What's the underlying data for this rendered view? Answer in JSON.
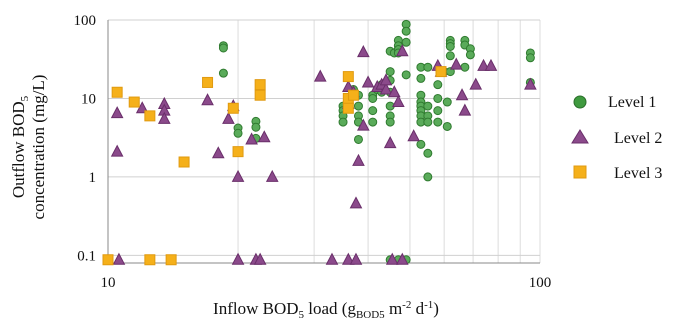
{
  "chart_data": {
    "type": "scatter",
    "xscale": "log",
    "yscale": "log",
    "xlim": [
      10,
      100
    ],
    "ylim": [
      0.08,
      100
    ],
    "grid": true,
    "legend_position": "right",
    "xlabel": {
      "main": "Inflow BOD",
      "sub1": "5",
      "mid": " load (g",
      "sub2": "BOD5",
      "end": " m",
      "sup1": "-2",
      "tail": " d",
      "sup2": "-1",
      "close": ")"
    },
    "ylabel": {
      "line1": "Outflow BOD",
      "line1_sub": "5",
      "line2": "concentration  (mg/L)"
    },
    "x_ticks": [
      {
        "value": 10,
        "label": "10"
      },
      {
        "value": 100,
        "label": "100"
      }
    ],
    "y_ticks": [
      {
        "value": 0.1,
        "label": "0.1"
      },
      {
        "value": 1,
        "label": "1"
      },
      {
        "value": 10,
        "label": "10"
      },
      {
        "value": 100,
        "label": "100"
      }
    ],
    "series": [
      {
        "name": "Level 1",
        "marker": "circle",
        "color": "#5aab5a",
        "edge": "#2f7a2f",
        "points": [
          [
            18.5,
            47
          ],
          [
            18.5,
            44
          ],
          [
            18.5,
            21
          ],
          [
            20,
            4.2
          ],
          [
            20,
            3.6
          ],
          [
            22,
            5.1
          ],
          [
            22,
            4.3
          ],
          [
            22,
            3.1
          ],
          [
            35,
            8
          ],
          [
            35,
            7
          ],
          [
            35,
            6
          ],
          [
            35,
            5
          ],
          [
            37,
            13
          ],
          [
            38,
            11
          ],
          [
            38,
            8
          ],
          [
            38,
            6
          ],
          [
            38,
            5
          ],
          [
            38,
            3
          ],
          [
            41,
            11
          ],
          [
            41,
            10
          ],
          [
            41,
            7
          ],
          [
            41,
            5
          ],
          [
            42,
            13
          ],
          [
            43,
            15
          ],
          [
            43,
            12
          ],
          [
            45,
            40
          ],
          [
            45,
            22
          ],
          [
            45,
            17
          ],
          [
            45,
            12
          ],
          [
            45,
            8
          ],
          [
            45,
            6
          ],
          [
            45,
            5
          ],
          [
            46,
            38
          ],
          [
            47,
            55
          ],
          [
            47,
            47
          ],
          [
            47,
            42
          ],
          [
            47,
            38
          ],
          [
            49,
            88
          ],
          [
            49,
            72
          ],
          [
            49,
            52
          ],
          [
            49,
            20
          ],
          [
            53,
            25
          ],
          [
            53,
            18
          ],
          [
            53,
            11
          ],
          [
            53,
            9
          ],
          [
            53,
            8
          ],
          [
            53,
            7
          ],
          [
            53,
            6
          ],
          [
            53,
            5
          ],
          [
            53,
            2.6
          ],
          [
            55,
            25
          ],
          [
            55,
            8
          ],
          [
            55,
            6
          ],
          [
            55,
            5
          ],
          [
            55,
            2.0
          ],
          [
            55,
            1.0
          ],
          [
            58,
            15
          ],
          [
            58,
            10
          ],
          [
            58,
            7
          ],
          [
            58,
            5
          ],
          [
            60,
            22
          ],
          [
            61,
            9
          ],
          [
            61,
            4.4
          ],
          [
            62,
            55
          ],
          [
            62,
            50
          ],
          [
            62,
            46
          ],
          [
            62,
            35
          ],
          [
            62,
            22
          ],
          [
            67,
            55
          ],
          [
            67,
            48
          ],
          [
            67,
            25
          ],
          [
            69,
            43
          ],
          [
            69,
            36
          ],
          [
            95,
            38
          ],
          [
            95,
            33
          ],
          [
            95,
            16
          ],
          [
            45,
            0.088
          ],
          [
            47,
            0.088
          ],
          [
            49,
            0.088
          ]
        ]
      },
      {
        "name": "Level 2",
        "marker": "triangle",
        "color": "#8b4a8b",
        "edge": "#6a2f6a",
        "points": [
          [
            10.5,
            6.5
          ],
          [
            10.5,
            2.1
          ],
          [
            12,
            7.5
          ],
          [
            13.5,
            8.5
          ],
          [
            13.5,
            7
          ],
          [
            13.5,
            5.5
          ],
          [
            17,
            9.5
          ],
          [
            18,
            2.0
          ],
          [
            19,
            5.5
          ],
          [
            19.5,
            8
          ],
          [
            20,
            1.0
          ],
          [
            21.5,
            3
          ],
          [
            23,
            3.2
          ],
          [
            24,
            1.0
          ],
          [
            31,
            19
          ],
          [
            36,
            14
          ],
          [
            36,
            8.5
          ],
          [
            37,
            12
          ],
          [
            37.5,
            0.46
          ],
          [
            38,
            1.6
          ],
          [
            39,
            4.5
          ],
          [
            39,
            39
          ],
          [
            40,
            16
          ],
          [
            42,
            14
          ],
          [
            43,
            15
          ],
          [
            44,
            13
          ],
          [
            44,
            17
          ],
          [
            45,
            2.7
          ],
          [
            46,
            12
          ],
          [
            47,
            9
          ],
          [
            48,
            40
          ],
          [
            51,
            3.3
          ],
          [
            58,
            26
          ],
          [
            59,
            22
          ],
          [
            64,
            27
          ],
          [
            66,
            11
          ],
          [
            67,
            7
          ],
          [
            71,
            15
          ],
          [
            74,
            26
          ],
          [
            77,
            26
          ],
          [
            95,
            15
          ],
          [
            10.6,
            0.088
          ],
          [
            20,
            0.088
          ],
          [
            22,
            0.088
          ],
          [
            22.5,
            0.088
          ],
          [
            33,
            0.088
          ],
          [
            36,
            0.088
          ],
          [
            37.5,
            0.088
          ],
          [
            45.5,
            0.088
          ],
          [
            48,
            0.088
          ]
        ]
      },
      {
        "name": "Level 3",
        "marker": "square",
        "color": "#f5b01a",
        "edge": "#e09a10",
        "points": [
          [
            10.5,
            12
          ],
          [
            11.5,
            9
          ],
          [
            12.5,
            6
          ],
          [
            15,
            1.55
          ],
          [
            17,
            16
          ],
          [
            19.5,
            7.5
          ],
          [
            20,
            2.1
          ],
          [
            22.5,
            15
          ],
          [
            22.5,
            11
          ],
          [
            36,
            19
          ],
          [
            36,
            10
          ],
          [
            36,
            7.5
          ],
          [
            37,
            11
          ],
          [
            59,
            22
          ],
          [
            10,
            0.088
          ],
          [
            12.5,
            0.088
          ],
          [
            14,
            0.088
          ]
        ]
      }
    ]
  }
}
